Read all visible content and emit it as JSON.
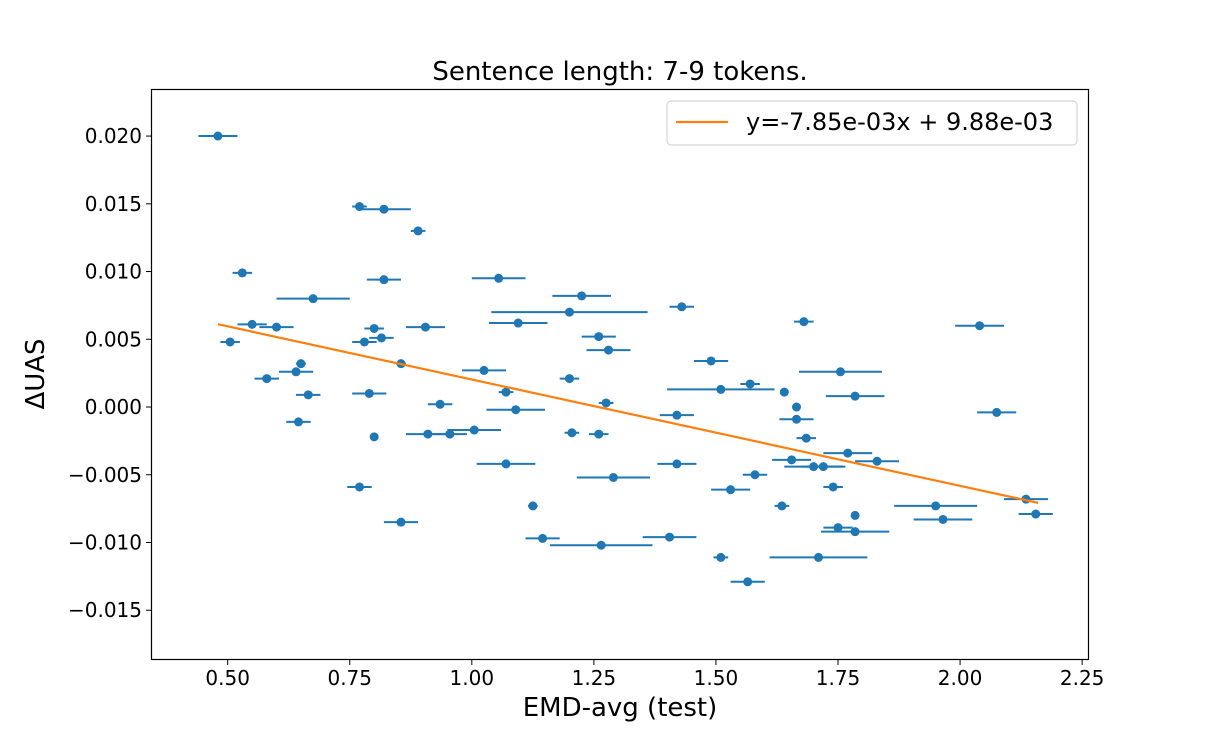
{
  "chart_data": {
    "type": "scatter",
    "title": "Sentence length: 7-9 tokens.",
    "xlabel": "EMD-avg (test)",
    "ylabel": "ΔUAS",
    "xlim": [
      0.345,
      2.262
    ],
    "ylim": [
      -0.0186,
      0.0234
    ],
    "xticks": [
      0.5,
      0.75,
      1.0,
      1.25,
      1.5,
      1.75,
      2.0,
      2.25
    ],
    "xtick_labels": [
      "0.50",
      "0.75",
      "1.00",
      "1.25",
      "1.50",
      "1.75",
      "2.00",
      "2.25"
    ],
    "yticks": [
      -0.015,
      -0.01,
      -0.005,
      0.0,
      0.005,
      0.01,
      0.015,
      0.02
    ],
    "ytick_labels": [
      "−0.015",
      "−0.010",
      "−0.005",
      "0.000",
      "0.005",
      "0.010",
      "0.015",
      "0.020"
    ],
    "grid": false,
    "legend": {
      "position": "top-right",
      "entries": [
        "y=-7.85e-03x + 9.88e-03"
      ]
    },
    "colors": {
      "points": "#1f77b4",
      "fit": "#ff7f0e"
    },
    "fit": {
      "slope": -0.00785,
      "intercept": 0.00988,
      "x_range": [
        0.48,
        2.16
      ]
    },
    "points": [
      {
        "x": 0.48,
        "y": 0.02,
        "xerr": 0.04
      },
      {
        "x": 0.53,
        "y": 0.0099,
        "xerr": 0.02
      },
      {
        "x": 0.55,
        "y": 0.0061,
        "xerr": 0.03
      },
      {
        "x": 0.505,
        "y": 0.0048,
        "xerr": 0.02
      },
      {
        "x": 0.6,
        "y": 0.0059,
        "xerr": 0.035
      },
      {
        "x": 0.58,
        "y": 0.0021,
        "xerr": 0.025
      },
      {
        "x": 0.64,
        "y": 0.0026,
        "xerr": 0.035
      },
      {
        "x": 0.65,
        "y": 0.0032,
        "xerr": 0.01
      },
      {
        "x": 0.665,
        "y": 0.0009,
        "xerr": 0.025
      },
      {
        "x": 0.645,
        "y": -0.0011,
        "xerr": 0.025
      },
      {
        "x": 0.675,
        "y": 0.008,
        "xerr": 0.075
      },
      {
        "x": 0.77,
        "y": 0.0148,
        "xerr": 0.015
      },
      {
        "x": 0.82,
        "y": 0.0146,
        "xerr": 0.055
      },
      {
        "x": 0.89,
        "y": 0.013,
        "xerr": 0.015
      },
      {
        "x": 0.82,
        "y": 0.0094,
        "xerr": 0.035
      },
      {
        "x": 0.8,
        "y": 0.0058,
        "xerr": 0.02
      },
      {
        "x": 0.78,
        "y": 0.0048,
        "xerr": 0.025
      },
      {
        "x": 0.815,
        "y": 0.0051,
        "xerr": 0.025
      },
      {
        "x": 0.855,
        "y": 0.0032,
        "xerr": 0.01
      },
      {
        "x": 0.79,
        "y": 0.001,
        "xerr": 0.035
      },
      {
        "x": 0.8,
        "y": -0.0022,
        "xerr": 0.0
      },
      {
        "x": 0.77,
        "y": -0.0059,
        "xerr": 0.025
      },
      {
        "x": 0.855,
        "y": -0.0085,
        "xerr": 0.035
      },
      {
        "x": 0.905,
        "y": 0.0059,
        "xerr": 0.04
      },
      {
        "x": 0.935,
        "y": 0.0002,
        "xerr": 0.025
      },
      {
        "x": 0.91,
        "y": -0.002,
        "xerr": 0.045
      },
      {
        "x": 0.955,
        "y": -0.002,
        "xerr": 0.035
      },
      {
        "x": 1.005,
        "y": -0.0017,
        "xerr": 0.055
      },
      {
        "x": 1.025,
        "y": 0.0027,
        "xerr": 0.045
      },
      {
        "x": 1.055,
        "y": 0.0095,
        "xerr": 0.055
      },
      {
        "x": 1.095,
        "y": 0.0062,
        "xerr": 0.06
      },
      {
        "x": 1.07,
        "y": 0.0011,
        "xerr": 0.015
      },
      {
        "x": 1.09,
        "y": -0.0002,
        "xerr": 0.06
      },
      {
        "x": 1.07,
        "y": -0.0042,
        "xerr": 0.06
      },
      {
        "x": 1.125,
        "y": -0.0073,
        "xerr": 0.01
      },
      {
        "x": 1.145,
        "y": -0.0097,
        "xerr": 0.035
      },
      {
        "x": 1.2,
        "y": 0.007,
        "xerr": 0.16
      },
      {
        "x": 1.225,
        "y": 0.0082,
        "xerr": 0.06
      },
      {
        "x": 1.2,
        "y": 0.0021,
        "xerr": 0.02
      },
      {
        "x": 1.205,
        "y": -0.0019,
        "xerr": 0.015
      },
      {
        "x": 1.26,
        "y": 0.0052,
        "xerr": 0.035
      },
      {
        "x": 1.28,
        "y": 0.0042,
        "xerr": 0.045
      },
      {
        "x": 1.275,
        "y": 0.0003,
        "xerr": 0.015
      },
      {
        "x": 1.26,
        "y": -0.002,
        "xerr": 0.02
      },
      {
        "x": 1.29,
        "y": -0.0052,
        "xerr": 0.075
      },
      {
        "x": 1.265,
        "y": -0.0102,
        "xerr": 0.105
      },
      {
        "x": 1.43,
        "y": 0.0074,
        "xerr": 0.025
      },
      {
        "x": 1.42,
        "y": -0.0006,
        "xerr": 0.035
      },
      {
        "x": 1.42,
        "y": -0.0042,
        "xerr": 0.04
      },
      {
        "x": 1.405,
        "y": -0.0096,
        "xerr": 0.055
      },
      {
        "x": 1.49,
        "y": 0.0034,
        "xerr": 0.035
      },
      {
        "x": 1.51,
        "y": 0.0013,
        "xerr": 0.11
      },
      {
        "x": 1.53,
        "y": -0.0061,
        "xerr": 0.04
      },
      {
        "x": 1.51,
        "y": -0.0111,
        "xerr": 0.015
      },
      {
        "x": 1.565,
        "y": -0.0129,
        "xerr": 0.035
      },
      {
        "x": 1.57,
        "y": 0.0017,
        "xerr": 0.02
      },
      {
        "x": 1.58,
        "y": -0.005,
        "xerr": 0.025
      },
      {
        "x": 1.64,
        "y": 0.0011,
        "xerr": 0.0
      },
      {
        "x": 1.635,
        "y": -0.0073,
        "xerr": 0.015
      },
      {
        "x": 1.68,
        "y": 0.0063,
        "xerr": 0.02
      },
      {
        "x": 1.665,
        "y": 0.0,
        "xerr": 0.0
      },
      {
        "x": 1.665,
        "y": -0.0009,
        "xerr": 0.035
      },
      {
        "x": 1.685,
        "y": -0.0023,
        "xerr": 0.02
      },
      {
        "x": 1.655,
        "y": -0.0039,
        "xerr": 0.04
      },
      {
        "x": 1.7,
        "y": -0.0044,
        "xerr": 0.06
      },
      {
        "x": 1.72,
        "y": -0.0044,
        "xerr": 0.045
      },
      {
        "x": 1.71,
        "y": -0.0111,
        "xerr": 0.1
      },
      {
        "x": 1.755,
        "y": 0.0026,
        "xerr": 0.085
      },
      {
        "x": 1.785,
        "y": 0.0008,
        "xerr": 0.06
      },
      {
        "x": 1.77,
        "y": -0.0034,
        "xerr": 0.05
      },
      {
        "x": 1.74,
        "y": -0.0059,
        "xerr": 0.02
      },
      {
        "x": 1.785,
        "y": -0.008,
        "xerr": 0.0
      },
      {
        "x": 1.75,
        "y": -0.0089,
        "xerr": 0.03
      },
      {
        "x": 1.785,
        "y": -0.0092,
        "xerr": 0.07
      },
      {
        "x": 1.83,
        "y": -0.004,
        "xerr": 0.045
      },
      {
        "x": 1.95,
        "y": -0.0073,
        "xerr": 0.085
      },
      {
        "x": 1.965,
        "y": -0.0083,
        "xerr": 0.06
      },
      {
        "x": 2.04,
        "y": 0.006,
        "xerr": 0.05
      },
      {
        "x": 2.075,
        "y": -0.0004,
        "xerr": 0.04
      },
      {
        "x": 2.135,
        "y": -0.0068,
        "xerr": 0.045
      },
      {
        "x": 2.155,
        "y": -0.0079,
        "xerr": 0.035
      }
    ]
  }
}
